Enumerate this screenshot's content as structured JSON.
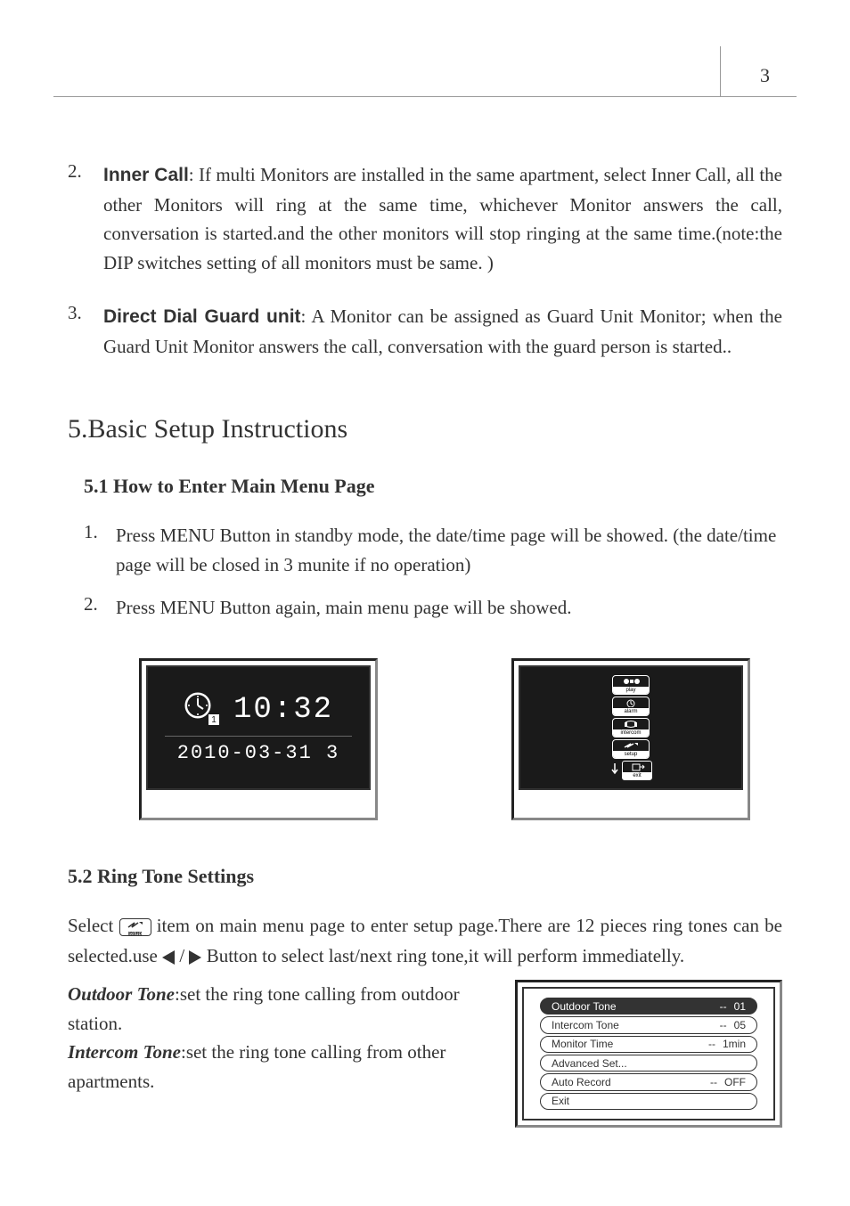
{
  "page_number": "3",
  "items": [
    {
      "num": "2.",
      "label": "Inner Call",
      "text": ": If multi Monitors are installed in the same apartment, select Inner Call, all the other Monitors will ring at the same time, whichever Monitor answers the call, conversation is started.and the other monitors will stop ringing at the same time.(note:the DIP switches setting of all monitors must be same. )"
    },
    {
      "num": "3.",
      "label": "Direct Dial Guard unit",
      "text": ": A Monitor can be assigned as Guard Unit Monitor; when the Guard Unit Monitor answers the call, conversation with the guard person is started.."
    }
  ],
  "section5_heading": "5.Basic Setup Instructions",
  "sub51_heading": "5.1 How to Enter Main Menu Page",
  "sub51_items": [
    {
      "num": "1.",
      "text": "Press MENU Button in standby mode, the date/time page will be showed. (the date/time page will be closed in 3 munite if no operation)"
    },
    {
      "num": "2.",
      "text": "Press  MENU Button again, main menu page will be showed."
    }
  ],
  "clock_screen": {
    "time": "10:32",
    "date": "2010-03-31   3",
    "badge": "1"
  },
  "main_menu_icons": [
    "play",
    "alarm",
    "intercom",
    "setup",
    "exit"
  ],
  "sub52_heading": "5.2 Ring Tone Settings",
  "para52_a": "Select ",
  "para52_b": " item on main menu page to enter setup page.There are 12 pieces ring tones can be selected.use   ",
  "para52_c": "  /  ",
  "para52_d": "  Button to select last/next ring tone,it will perform immediatelly.",
  "outdoor_label": "Outdoor Tone",
  "outdoor_text": ":set the ring tone calling from outdoor station.",
  "intercom_label": "Intercom Tone",
  "intercom_text": ":set the ring tone calling from other apartments.",
  "setup_menu": {
    "rows": [
      {
        "label": "Outdoor Tone",
        "dash": "--",
        "value": "01",
        "selected": true
      },
      {
        "label": "Intercom Tone",
        "dash": "--",
        "value": "05",
        "selected": false
      },
      {
        "label": "Monitor Time",
        "dash": "--",
        "value": "1min",
        "selected": false
      },
      {
        "label": "Advanced Set...",
        "dash": "",
        "value": "",
        "selected": false
      },
      {
        "label": "Auto Record",
        "dash": "--",
        "value": "OFF",
        "selected": false
      },
      {
        "label": "Exit",
        "dash": "",
        "value": "",
        "selected": false
      }
    ]
  },
  "colors": {
    "text": "#333333",
    "screen_bg": "#1a1a1a",
    "white": "#ffffff",
    "rule": "#999999"
  }
}
